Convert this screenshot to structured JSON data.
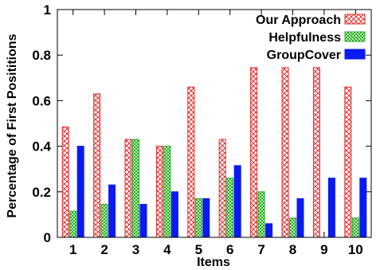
{
  "chart_data": {
    "type": "bar",
    "xlabel": "Items",
    "ylabel": "Percentage of First Posititions",
    "categories": [
      "1",
      "2",
      "3",
      "4",
      "5",
      "6",
      "7",
      "8",
      "9",
      "10"
    ],
    "ylim": [
      0,
      1
    ],
    "yticks": [
      "0",
      "0.2",
      "0.4",
      "0.6",
      "0.8",
      "1"
    ],
    "grid": false,
    "legend_position": "top-right",
    "series": [
      {
        "name": "Our Approach",
        "color": "#e03030",
        "pattern": "crosshatch",
        "values": [
          0.485,
          0.63,
          0.43,
          0.4,
          0.66,
          0.43,
          0.745,
          0.745,
          0.745,
          0.66
        ]
      },
      {
        "name": "Helpfulness",
        "color": "#2eaa2e",
        "pattern": "dots",
        "values": [
          0.115,
          0.145,
          0.43,
          0.4,
          0.17,
          0.26,
          0.2,
          0.085,
          0.0,
          0.085
        ]
      },
      {
        "name": "GroupCover",
        "color": "#0a1af0",
        "pattern": "solid",
        "values": [
          0.4,
          0.23,
          0.145,
          0.2,
          0.17,
          0.315,
          0.06,
          0.17,
          0.26,
          0.26
        ]
      }
    ]
  }
}
